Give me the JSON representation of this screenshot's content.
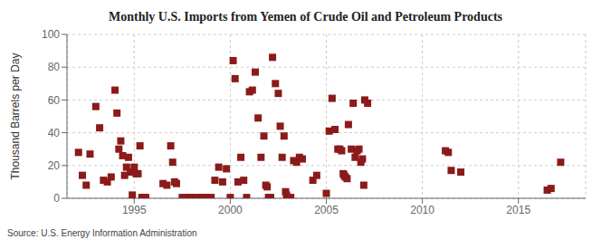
{
  "chart_data": {
    "type": "scatter",
    "title": "Monthly U.S. Imports from Yemen of Crude Oil and Petroleum Products",
    "ylabel": "Thousand Barrels per Day",
    "annotations": [
      "Source: U.S. Energy Information Administration"
    ],
    "color": "#8b1a1a",
    "marker": "square",
    "grid": true,
    "xlim": [
      1991.5,
      2018.5
    ],
    "xticks": [
      1995,
      2000,
      2005,
      2010,
      2015
    ],
    "ylim": [
      0,
      100
    ],
    "yticks": [
      0,
      20,
      40,
      60,
      80,
      100
    ],
    "x": [
      1992.1,
      1992.3,
      1992.5,
      1992.7,
      1993.0,
      1993.2,
      1993.4,
      1993.6,
      1993.8,
      1994.0,
      1994.1,
      1994.2,
      1994.3,
      1994.4,
      1994.5,
      1994.6,
      1994.7,
      1994.8,
      1994.9,
      1995.0,
      1995.1,
      1995.2,
      1995.3,
      1995.4,
      1995.5,
      1995.6,
      1996.5,
      1996.7,
      1996.9,
      1997.0,
      1997.1,
      1997.2,
      1997.5,
      1997.7,
      1997.9,
      1998.0,
      1998.2,
      1998.4,
      1998.6,
      1998.8,
      1999.0,
      1999.2,
      1999.4,
      1999.6,
      1999.8,
      2000.0,
      2000.15,
      2000.25,
      2000.4,
      2000.55,
      2000.7,
      2000.85,
      2001.0,
      2001.15,
      2001.3,
      2001.45,
      2001.6,
      2001.75,
      2001.85,
      2001.92,
      2001.99,
      2002.1,
      2002.2,
      2002.35,
      2002.5,
      2002.6,
      2002.7,
      2002.8,
      2002.88,
      2002.93,
      2002.99,
      2003.05,
      2003.15,
      2003.3,
      2003.45,
      2003.6,
      2003.75,
      2004.3,
      2004.5,
      2005.0,
      2005.15,
      2005.3,
      2005.45,
      2005.6,
      2005.7,
      2005.8,
      2005.88,
      2005.93,
      2005.99,
      2006.08,
      2006.15,
      2006.3,
      2006.4,
      2006.5,
      2006.6,
      2006.7,
      2006.8,
      2006.88,
      2006.95,
      2007.0,
      2007.15,
      2011.2,
      2011.35,
      2011.5,
      2012.0,
      2016.5,
      2016.7,
      2017.2
    ],
    "values": [
      28,
      14,
      8,
      27,
      56,
      43,
      11,
      10,
      13,
      66,
      52,
      30,
      35,
      26,
      14,
      19,
      25,
      16,
      2,
      19,
      15,
      15,
      32,
      0.5,
      0.5,
      0.5,
      9,
      8,
      32,
      22,
      10,
      9,
      0.5,
      0.5,
      0.5,
      0.5,
      0.5,
      0.5,
      0.5,
      0.5,
      0.5,
      11,
      19,
      10,
      18,
      0.5,
      84,
      73,
      10,
      25,
      11,
      0.5,
      65,
      66,
      77,
      49,
      25,
      38,
      8,
      7,
      0.5,
      0.5,
      86,
      70,
      64,
      44,
      25,
      38,
      4,
      2,
      0.5,
      0.5,
      0.5,
      23,
      22,
      25,
      24,
      11,
      14,
      3,
      41,
      61,
      42,
      30,
      30,
      29,
      15,
      14,
      13,
      12,
      45,
      30,
      58,
      25,
      29,
      30,
      22,
      24,
      8,
      60,
      58,
      29,
      28,
      17,
      16,
      5,
      6,
      22
    ]
  }
}
